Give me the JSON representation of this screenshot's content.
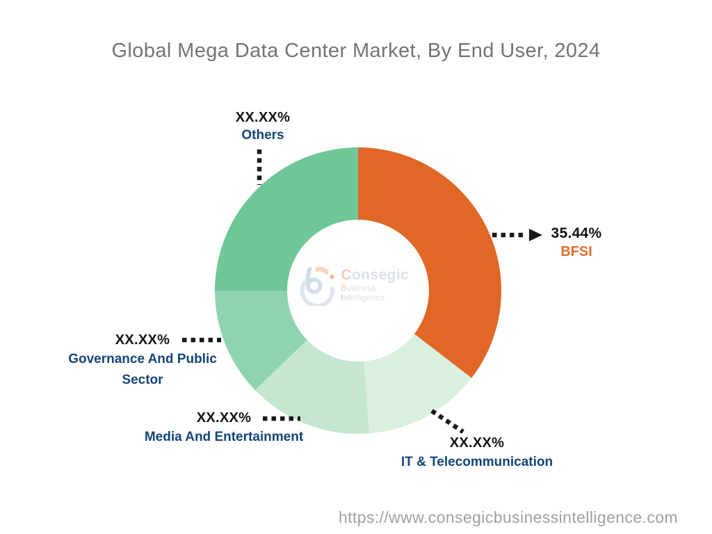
{
  "title": "Global Mega Data Center Market, By End User, 2024",
  "footer_url": "https://www.consegicbusinessintelligence.com",
  "watermark": {
    "brand_initial": "C",
    "brand_rest": "onsegic",
    "tagline_initial_b": "B",
    "tagline_rest_1": "usiness ",
    "tagline_initial_i": "I",
    "tagline_rest_2": "ntelligence"
  },
  "colors": {
    "title": "#727376",
    "value_text": "#131313",
    "label_navy": "#144578",
    "bfsi_label": "#E26E2E",
    "leader_line": "#1A1A1A",
    "url_gray": "#9FA0A2",
    "background": "#FFFFFF"
  },
  "chart_data": {
    "type": "pie",
    "subtype": "donut",
    "title": "Global Mega Data Center Market, By End User, 2024",
    "start_angle_deg": 0,
    "direction": "clockwise",
    "inner_radius_ratio": 0.495,
    "legend_position": "callout-labels",
    "segments": [
      {
        "label": "BFSI",
        "value_label": "35.44%",
        "value_pct": 35.44,
        "masked": false,
        "color": "#E16726"
      },
      {
        "label": "IT & Telecommunication",
        "value_label": "XX.XX%",
        "value_pct": 13.3,
        "masked": true,
        "color": "#D9F0DE"
      },
      {
        "label": "Media And Entertainment",
        "value_label": "XX.XX%",
        "value_pct": 14.04,
        "masked": true,
        "color": "#C5E7CF"
      },
      {
        "label": "Governance And Public Sector",
        "value_label": "XX.XX%",
        "value_pct": 12.22,
        "masked": true,
        "color": "#8FD4AD"
      },
      {
        "label": "Others",
        "value_label": "XX.XX%",
        "value_pct": 25.0,
        "masked": true,
        "color": "#6FC697"
      }
    ]
  }
}
